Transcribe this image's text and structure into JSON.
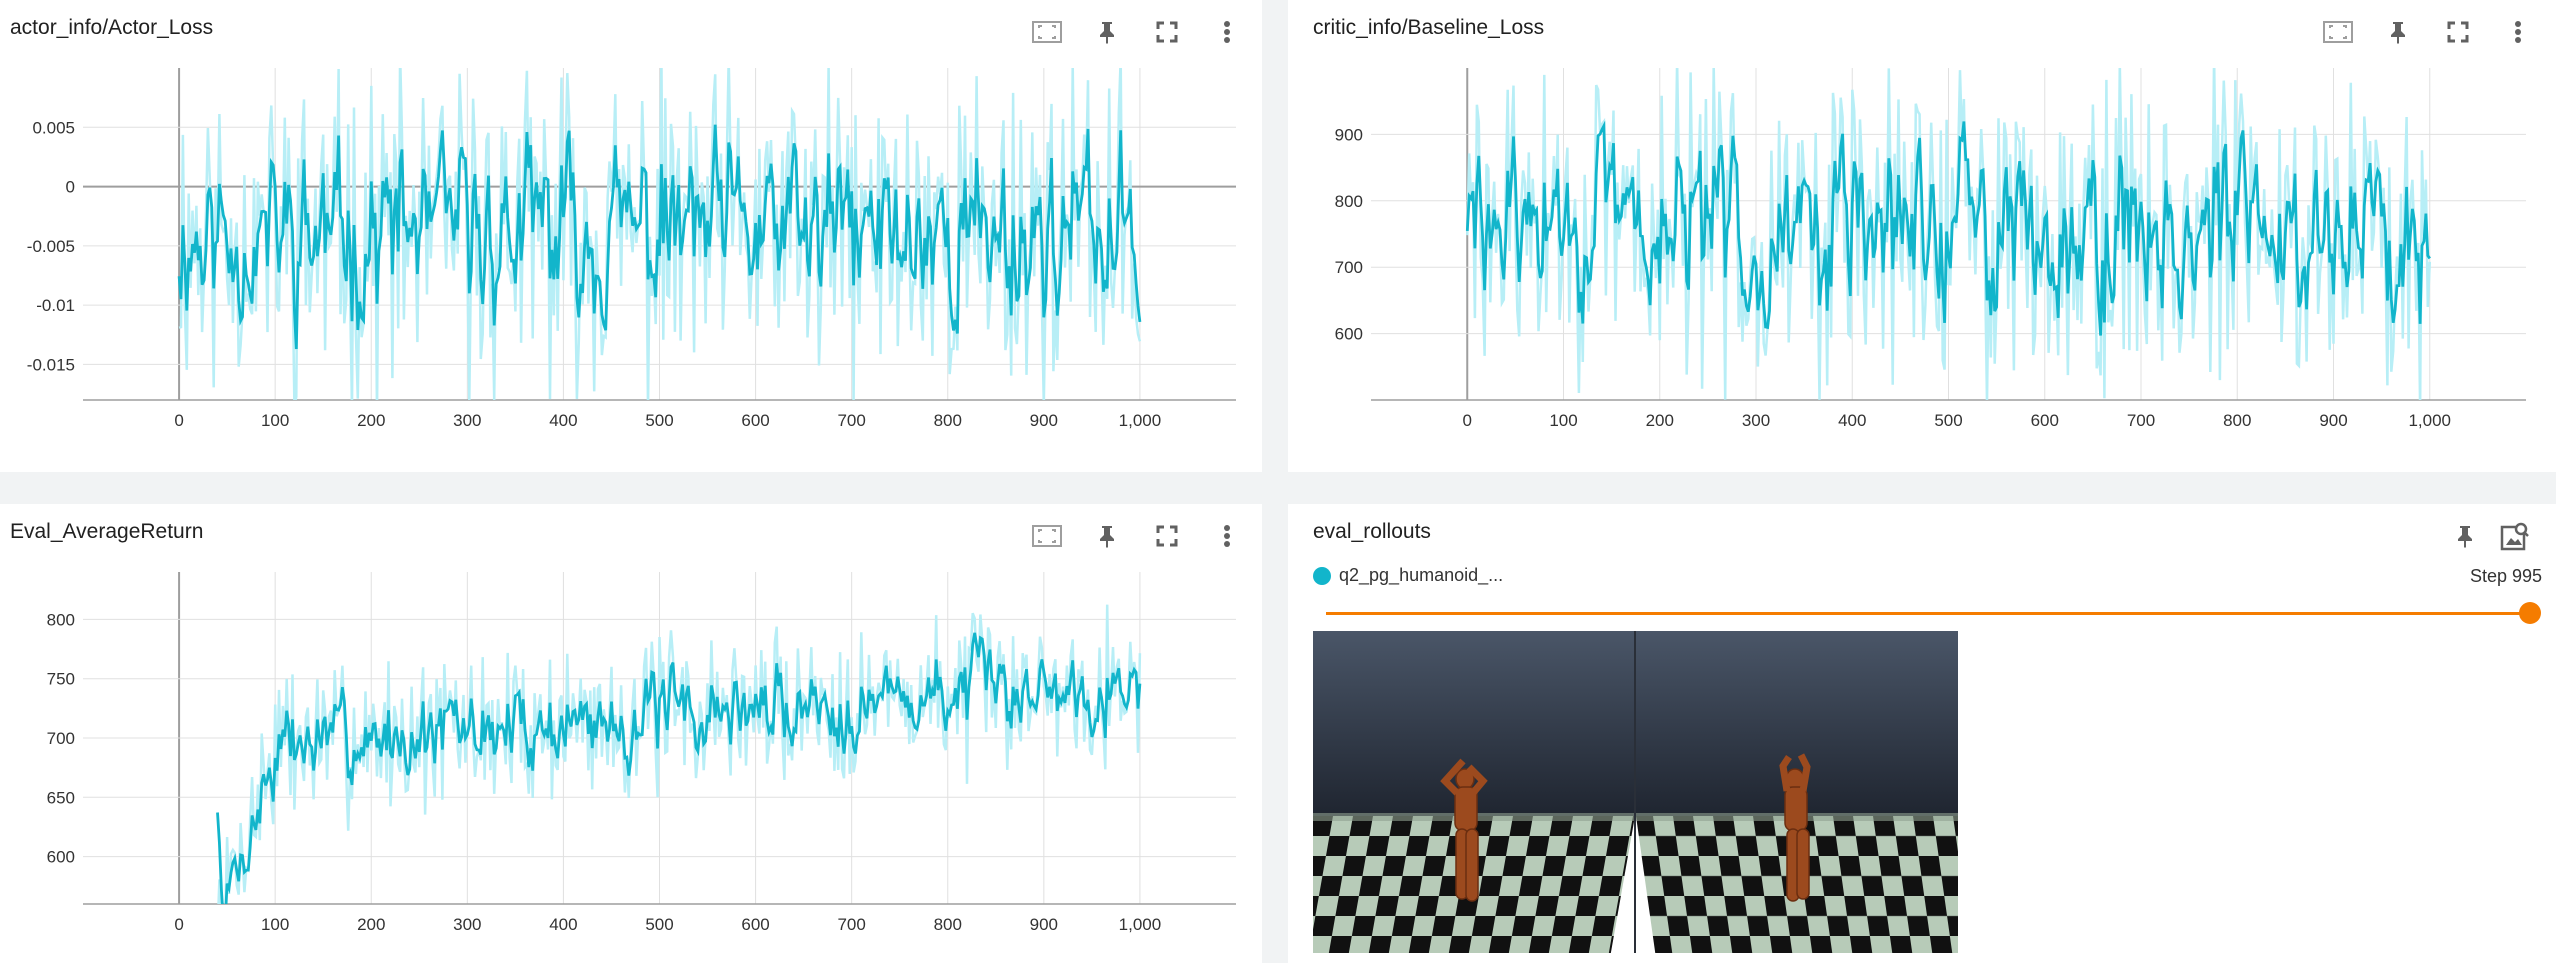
{
  "colors": {
    "series_dark": "#12b5cb",
    "series_light": "#b7eef6",
    "accent_orange": "#f57c00",
    "grid": "#e0e0e0",
    "axis": "#9e9e9e"
  },
  "cards": [
    {
      "title": "actor_info/Actor_Loss",
      "tools": [
        "fit-domain-icon",
        "pin-icon",
        "fullscreen-icon",
        "more-vert-icon"
      ],
      "chart_data": {
        "type": "line",
        "xlim": [
          -100,
          1100
        ],
        "ylim": [
          -0.018,
          0.01
        ],
        "xticks": [
          0,
          100,
          200,
          300,
          400,
          500,
          600,
          700,
          800,
          900,
          1000
        ],
        "xtick_labels": [
          "0",
          "100",
          "200",
          "300",
          "400",
          "500",
          "600",
          "700",
          "800",
          "900",
          "1,000"
        ],
        "yticks": [
          0.005,
          0,
          -0.005,
          -0.01,
          -0.015
        ],
        "ytick_labels": [
          "0.005",
          "0",
          "-0.005",
          "-0.01",
          "-0.015"
        ],
        "zero_line": true,
        "x_range": [
          0,
          1000
        ],
        "generator": {
          "center": -0.004,
          "amp": 0.008,
          "trend": 0.0,
          "warmup": 0,
          "seed": 11
        }
      }
    },
    {
      "title": "critic_info/Baseline_Loss",
      "tools": [
        "fit-domain-icon",
        "pin-icon",
        "fullscreen-icon",
        "more-vert-icon"
      ],
      "chart_data": {
        "type": "line",
        "xlim": [
          -100,
          1100
        ],
        "ylim": [
          500,
          1000
        ],
        "xticks": [
          0,
          100,
          200,
          300,
          400,
          500,
          600,
          700,
          800,
          900,
          1000
        ],
        "xtick_labels": [
          "0",
          "100",
          "200",
          "300",
          "400",
          "500",
          "600",
          "700",
          "800",
          "900",
          "1,000"
        ],
        "yticks": [
          900,
          800,
          700,
          600
        ],
        "ytick_labels": [
          "900",
          "800",
          "700",
          "600"
        ],
        "zero_line": false,
        "x_range": [
          0,
          1000
        ],
        "generator": {
          "center": 760,
          "amp": 140,
          "trend": 0,
          "warmup": 0,
          "seed": 29
        }
      }
    },
    {
      "title": "Eval_AverageReturn",
      "tools": [
        "fit-domain-icon",
        "pin-icon",
        "fullscreen-icon",
        "more-vert-icon"
      ],
      "chart_data": {
        "type": "line",
        "xlim": [
          -100,
          1100
        ],
        "ylim": [
          560,
          840
        ],
        "xticks": [
          0,
          100,
          200,
          300,
          400,
          500,
          600,
          700,
          800,
          900,
          1000
        ],
        "xtick_labels": [
          "0",
          "100",
          "200",
          "300",
          "400",
          "500",
          "600",
          "700",
          "800",
          "900",
          "1,000"
        ],
        "yticks": [
          800,
          750,
          700,
          650,
          600
        ],
        "ytick_labels": [
          "800",
          "750",
          "700",
          "650",
          "600"
        ],
        "zero_line": false,
        "x_range": [
          40,
          1000
        ],
        "generator": {
          "center": 720,
          "amp": 40,
          "trend": 60,
          "warmup": 60,
          "seed": 7
        }
      }
    }
  ],
  "rollouts": {
    "title": "eval_rollouts",
    "run_name": "q2_pg_humanoid_...",
    "step_label": "Step 995",
    "slider_value": 1.0,
    "tools": [
      "pin-icon",
      "image-search-icon"
    ]
  }
}
